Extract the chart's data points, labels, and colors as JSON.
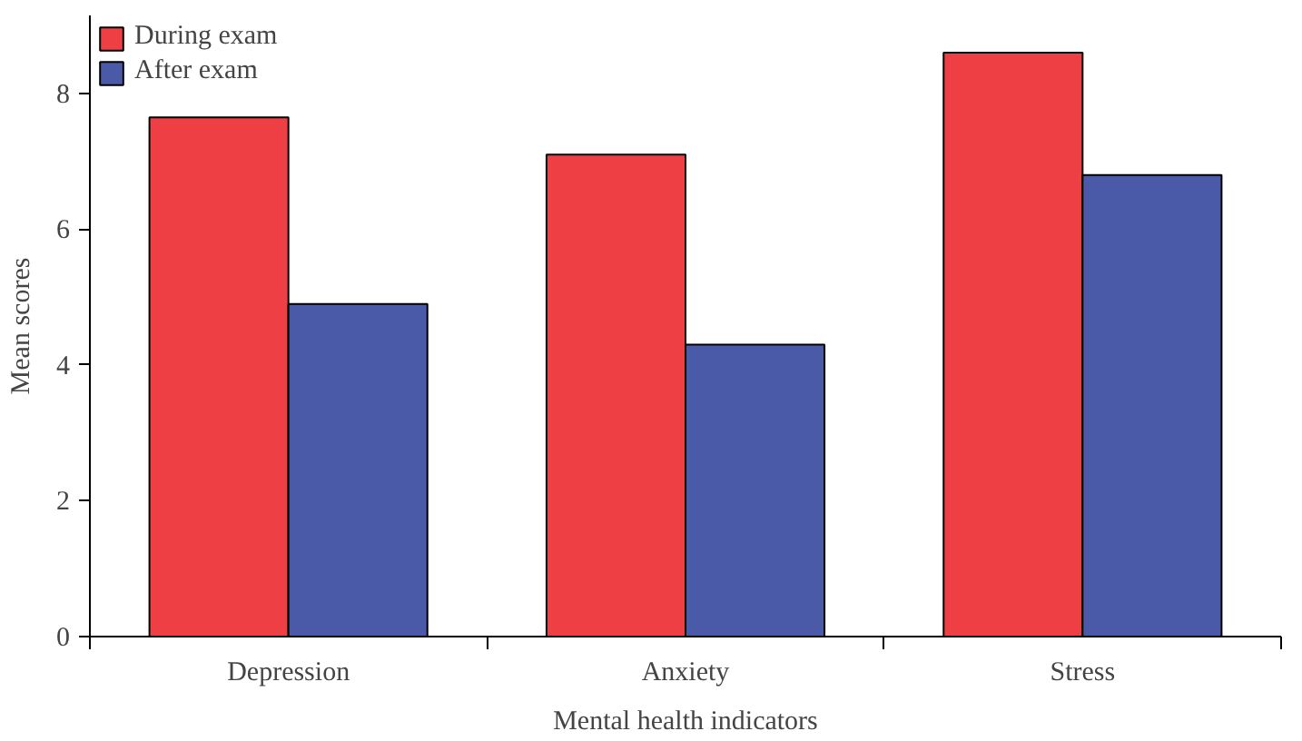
{
  "chart_data": {
    "type": "bar",
    "xlabel": "Mental health indicators",
    "ylabel": "Mean scores",
    "categories": [
      "Depression",
      "Anxiety",
      "Stress"
    ],
    "series": [
      {
        "name": "During exam",
        "color": "#ee4044",
        "values": [
          7.65,
          7.1,
          8.6
        ]
      },
      {
        "name": "After exam",
        "color": "#4b5aa8",
        "values": [
          4.9,
          4.3,
          6.8
        ]
      }
    ],
    "ylim": [
      0,
      9.15
    ],
    "yticks": [
      0,
      2,
      4,
      6,
      8
    ],
    "grid": false,
    "legend": "top left"
  }
}
